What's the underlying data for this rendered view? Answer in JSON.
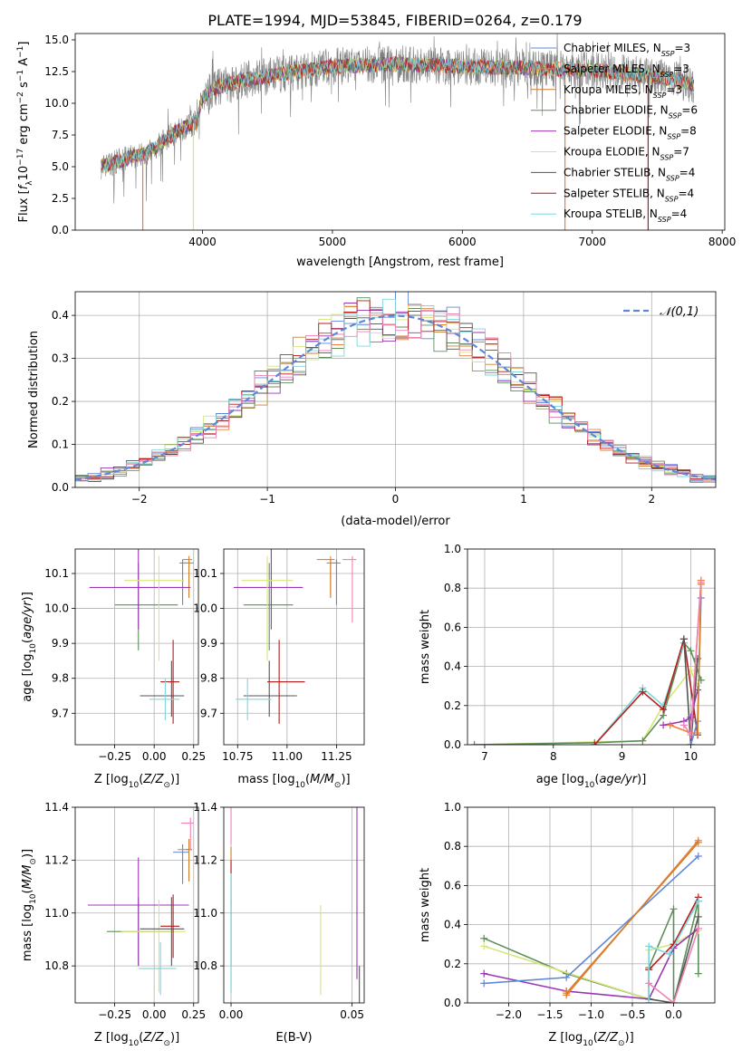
{
  "figure_title": "PLATE=1994, MJD=53845, FIBERID=0264, z=0.179",
  "colors": {
    "Chabrier MILES": "#5f87d7",
    "Salpeter MILES": "#f07e3a",
    "Kroupa MILES": "#d07f2a",
    "Chabrier ELODIE": "#5d8f5a",
    "Salpeter ELODIE": "#9b35b5",
    "Kroupa ELODIE": "#d6e67a",
    "Chabrier STELIB": "#555555",
    "Salpeter STELIB": "#b51c1c",
    "Kroupa STELIB": "#7ed6db",
    "pink": "#ee82b4",
    "gray_data": "#7f7f7f"
  },
  "chart_data": [
    {
      "id": "spectrum",
      "type": "line",
      "title": "PLATE=1994, MJD=53845, FIBERID=0264, z=0.179",
      "xlabel": "wavelength [Angstrom, rest frame]",
      "ylabel": "Flux [f_λ 10^-17 erg cm^-2 s^-1 A^-1]",
      "xlim": [
        3020,
        8020
      ],
      "ylim": [
        0,
        15.5
      ],
      "xticks": [
        4000,
        5000,
        6000,
        7000,
        8000
      ],
      "yticks": [
        0.0,
        2.5,
        5.0,
        7.5,
        10.0,
        12.5,
        15.0
      ],
      "grid": false,
      "legend": "upper right",
      "legend_entries": [
        {
          "label": "Chabrier MILES, N",
          "sub": "SSP",
          "suffix": "=3"
        },
        {
          "label": "Salpeter MILES, N",
          "sub": "SSP",
          "suffix": "=3"
        },
        {
          "label": "Kroupa MILES, N",
          "sub": "SSP",
          "suffix": "=3"
        },
        {
          "label": "Chabrier ELODIE, N",
          "sub": "SSP",
          "suffix": "=6"
        },
        {
          "label": "Salpeter ELODIE, N",
          "sub": "SSP",
          "suffix": "=8"
        },
        {
          "label": "Kroupa ELODIE, N",
          "sub": "SSP",
          "suffix": "=7"
        },
        {
          "label": "Chabrier STELIB, N",
          "sub": "SSP",
          "suffix": "=4"
        },
        {
          "label": "Salpeter STELIB, N",
          "sub": "SSP",
          "suffix": "=4"
        },
        {
          "label": "Kroupa STELIB, N",
          "sub": "SSP",
          "suffix": "=4"
        }
      ],
      "continuum": {
        "x": [
          3220,
          3400,
          3600,
          3800,
          3950,
          4000,
          4100,
          4300,
          4600,
          5000,
          5500,
          6000,
          6500,
          7000,
          7500,
          7780
        ],
        "y": [
          5.0,
          5.6,
          6.2,
          7.8,
          8.5,
          10.5,
          11.2,
          11.8,
          12.3,
          12.9,
          13.1,
          12.9,
          12.8,
          12.6,
          12.1,
          11.5
        ]
      },
      "spikes_to_zero": [
        3540,
        3930,
        6790,
        7430
      ]
    },
    {
      "id": "residuals",
      "type": "histogram",
      "xlabel": "(data-model)/error",
      "ylabel": "Normed distribution",
      "xlim": [
        -2.5,
        2.5
      ],
      "ylim": [
        0,
        0.455
      ],
      "xticks": [
        -2,
        -1,
        0,
        1,
        2
      ],
      "yticks": [
        0.0,
        0.1,
        0.2,
        0.3,
        0.4
      ],
      "grid": true,
      "legend": "upper right",
      "legend_entries": [
        "𝒩(0,1)"
      ],
      "bin_width": 0.1,
      "bins": 50
    },
    {
      "id": "age_vs_Z",
      "type": "errorbar",
      "xlabel": "Z [log10(Z/Z⊙)]",
      "ylabel": "age [log10(age/yr)]",
      "xlim": [
        -0.5,
        0.28
      ],
      "ylim": [
        9.61,
        10.17
      ],
      "xticks": [
        -0.25,
        0.0,
        0.25
      ],
      "yticks": [
        9.7,
        9.8,
        9.9,
        10.0,
        10.1
      ],
      "grid": true,
      "points": [
        {
          "c": "Chabrier MILES",
          "x": 0.18,
          "y": 10.13,
          "xerr": [
            0.02,
            0.03
          ],
          "yerr": [
            0.12,
            0.01
          ]
        },
        {
          "c": "Salpeter MILES",
          "x": 0.22,
          "y": 10.14,
          "xerr": [
            0.04,
            0.02
          ],
          "yerr": [
            0.1,
            0.01
          ]
        },
        {
          "c": "Kroupa MILES",
          "x": 0.22,
          "y": 10.13,
          "xerr": [
            0.03,
            0.03
          ],
          "yerr": [
            0.1,
            0.01
          ]
        },
        {
          "c": "Chabrier ELODIE",
          "x": -0.1,
          "y": 10.01,
          "xerr": [
            0.15,
            0.25
          ],
          "yerr": [
            0.13,
            0.12
          ]
        },
        {
          "c": "Salpeter ELODIE",
          "x": -0.1,
          "y": 10.06,
          "xerr": [
            0.31,
            0.33
          ],
          "yerr": [
            0.12,
            0.12
          ]
        },
        {
          "c": "Kroupa ELODIE",
          "x": 0.03,
          "y": 10.08,
          "xerr": [
            0.22,
            0.16
          ],
          "yerr": [
            0.23,
            0.07
          ]
        },
        {
          "c": "Chabrier STELIB",
          "x": 0.11,
          "y": 9.75,
          "xerr": [
            0.2,
            0.08
          ],
          "yerr": [
            0.06,
            0.1
          ]
        },
        {
          "c": "Salpeter STELIB",
          "x": 0.12,
          "y": 9.79,
          "xerr": [
            0.08,
            0.04
          ],
          "yerr": [
            0.12,
            0.12
          ]
        },
        {
          "c": "Kroupa STELIB",
          "x": 0.07,
          "y": 9.74,
          "xerr": [
            0.1,
            0.09
          ],
          "yerr": [
            0.06,
            0.06
          ]
        }
      ]
    },
    {
      "id": "age_vs_mass",
      "type": "errorbar",
      "xlabel": "mass [log10(M/M⊙)]",
      "ylabel": "",
      "xlim": [
        10.68,
        11.39
      ],
      "ylim": [
        9.61,
        10.17
      ],
      "xticks": [
        10.75,
        11.0,
        11.25
      ],
      "yticks": [
        9.7,
        9.8,
        9.9,
        10.0,
        10.1
      ],
      "grid": true,
      "points": [
        {
          "c": "Chabrier MILES",
          "x": 11.25,
          "y": 10.13,
          "xerr": [
            0.02,
            0.02
          ],
          "yerr": [
            0.12,
            0.01
          ]
        },
        {
          "c": "Salpeter MILES",
          "x": 11.22,
          "y": 10.14,
          "xerr": [
            0.07,
            0.02
          ],
          "yerr": [
            0.1,
            0.01
          ]
        },
        {
          "c": "Kroupa MILES",
          "x": 11.22,
          "y": 10.13,
          "xerr": [
            0.02,
            0.02
          ],
          "yerr": [
            0.1,
            0.01
          ]
        },
        {
          "c": "Chabrier ELODIE",
          "x": 10.91,
          "y": 10.01,
          "xerr": [
            0.13,
            0.12
          ],
          "yerr": [
            0.13,
            0.12
          ]
        },
        {
          "c": "Salpeter ELODIE",
          "x": 10.92,
          "y": 10.06,
          "xerr": [
            0.19,
            0.16
          ],
          "yerr": [
            0.12,
            0.12
          ]
        },
        {
          "c": "Kroupa ELODIE",
          "x": 10.9,
          "y": 10.08,
          "xerr": [
            0.13,
            0.13
          ],
          "yerr": [
            0.23,
            0.07
          ]
        },
        {
          "c": "Chabrier STELIB",
          "x": 10.91,
          "y": 9.75,
          "xerr": [
            0.13,
            0.14
          ],
          "yerr": [
            0.06,
            0.1
          ]
        },
        {
          "c": "Salpeter STELIB",
          "x": 10.96,
          "y": 9.79,
          "xerr": [
            0.06,
            0.13
          ],
          "yerr": [
            0.12,
            0.12
          ]
        },
        {
          "c": "Kroupa STELIB",
          "x": 10.8,
          "y": 9.74,
          "xerr": [
            0.06,
            0.12
          ],
          "yerr": [
            0.06,
            0.06
          ]
        },
        {
          "c": "pink",
          "x": 11.33,
          "y": 10.14,
          "xerr": [
            0.05,
            0.02
          ],
          "yerr": [
            0.18,
            0.01
          ]
        }
      ]
    },
    {
      "id": "weight_vs_age",
      "type": "line",
      "xlabel": "age [log10(age/yr)]",
      "ylabel": "mass weight",
      "xlim": [
        6.75,
        10.35
      ],
      "ylim": [
        0,
        1.0
      ],
      "xticks": [
        7,
        8,
        9,
        10
      ],
      "yticks": [
        0.0,
        0.2,
        0.4,
        0.6,
        0.8,
        1.0
      ],
      "grid": true,
      "series": [
        {
          "c": "Kroupa ELODIE",
          "x": [
            6.85,
            9.3,
            9.6,
            10.0,
            10.1
          ],
          "y": [
            0.0,
            0.02,
            0.2,
            0.38,
            0.3
          ]
        },
        {
          "c": "Chabrier ELODIE",
          "x": [
            6.85,
            8.6,
            9.3,
            9.6,
            9.9,
            10.0,
            10.15
          ],
          "y": [
            0.0,
            0.01,
            0.02,
            0.15,
            0.52,
            0.48,
            0.33
          ]
        },
        {
          "c": "Kroupa STELIB",
          "x": [
            8.6,
            9.3,
            9.6,
            9.9
          ],
          "y": [
            0.0,
            0.29,
            0.2,
            0.52
          ]
        },
        {
          "c": "Salpeter STELIB",
          "x": [
            8.6,
            9.3,
            9.6,
            9.9,
            10.1
          ],
          "y": [
            0.0,
            0.27,
            0.18,
            0.54,
            0.05
          ]
        },
        {
          "c": "Chabrier STELIB",
          "x": [
            9.9,
            10.0,
            10.1
          ],
          "y": [
            0.54,
            0.0,
            0.44
          ]
        },
        {
          "c": "Salpeter ELODIE",
          "x": [
            9.6,
            9.9,
            10.0,
            10.1
          ],
          "y": [
            0.1,
            0.12,
            0.14,
            0.28
          ]
        },
        {
          "c": "Chabrier MILES",
          "x": [
            10.0,
            10.1,
            10.15
          ],
          "y": [
            0.0,
            0.12,
            0.75
          ]
        },
        {
          "c": "Salpeter MILES",
          "x": [
            9.7,
            10.0,
            10.15
          ],
          "y": [
            0.1,
            0.06,
            0.84
          ]
        },
        {
          "c": "Kroupa MILES",
          "x": [
            10.1,
            10.15
          ],
          "y": [
            0.06,
            0.82
          ]
        },
        {
          "c": "pink",
          "x": [
            9.9,
            10.0,
            10.15
          ],
          "y": [
            0.1,
            0.05,
            0.83
          ]
        }
      ]
    },
    {
      "id": "mass_vs_Z",
      "type": "errorbar",
      "xlabel": "Z [log10(Z/Z⊙)]",
      "ylabel": "mass [log10(M/M⊙)]",
      "xlim": [
        -0.5,
        0.28
      ],
      "ylim": [
        10.66,
        11.4
      ],
      "xticks": [
        -0.25,
        0.0,
        0.25
      ],
      "yticks": [
        10.8,
        11.0,
        11.2,
        11.4
      ],
      "grid": true,
      "points": [
        {
          "c": "Chabrier MILES",
          "x": 0.18,
          "y": 11.23,
          "xerr": [
            0.06,
            0.04
          ],
          "yerr": [
            0.12,
            0.03
          ]
        },
        {
          "c": "Salpeter MILES",
          "x": 0.22,
          "y": 11.24,
          "xerr": [
            0.07,
            0.02
          ],
          "yerr": [
            0.12,
            0.04
          ]
        },
        {
          "c": "Kroupa MILES",
          "x": 0.22,
          "y": 11.24,
          "xerr": [
            0.02,
            0.02
          ],
          "yerr": [
            0.12,
            0.04
          ]
        },
        {
          "c": "Chabrier ELODIE",
          "x": -0.1,
          "y": 10.93,
          "xerr": [
            0.2,
            0.2
          ],
          "yerr": [
            0.13,
            0.13
          ]
        },
        {
          "c": "Salpeter ELODIE",
          "x": -0.1,
          "y": 11.03,
          "xerr": [
            0.32,
            0.32
          ],
          "yerr": [
            0.23,
            0.18
          ]
        },
        {
          "c": "Kroupa ELODIE",
          "x": 0.03,
          "y": 10.93,
          "xerr": [
            0.24,
            0.17
          ],
          "yerr": [
            0.23,
            0.12
          ]
        },
        {
          "c": "Chabrier STELIB",
          "x": 0.11,
          "y": 10.94,
          "xerr": [
            0.2,
            0.08
          ],
          "yerr": [
            0.14,
            0.12
          ]
        },
        {
          "c": "Salpeter STELIB",
          "x": 0.12,
          "y": 10.95,
          "xerr": [
            0.08,
            0.04
          ],
          "yerr": [
            0.12,
            0.12
          ]
        },
        {
          "c": "Kroupa STELIB",
          "x": 0.04,
          "y": 10.79,
          "xerr": [
            0.14,
            0.1
          ],
          "yerr": [
            0.1,
            0.1
          ]
        },
        {
          "c": "pink",
          "x": 0.23,
          "y": 11.34,
          "xerr": [
            0.06,
            0.02
          ],
          "yerr": [
            0.1,
            0.02
          ]
        }
      ]
    },
    {
      "id": "mass_vs_ebv",
      "type": "errorbar",
      "xlabel": "E(B-V)",
      "ylabel": "",
      "xlim": [
        -0.003,
        0.055
      ],
      "ylim": [
        10.66,
        11.4
      ],
      "xticks": [
        0.0,
        0.05
      ],
      "yticks": [
        10.8,
        11.0,
        11.2,
        11.4
      ],
      "grid": true,
      "points": [
        {
          "c": "pink",
          "x": 0.0,
          "y": 11.34,
          "xerr": [
            0,
            0
          ],
          "yerr": [
            0.08,
            0.06
          ]
        },
        {
          "c": "Kroupa MILES",
          "x": 0.0,
          "y": 11.15,
          "xerr": [
            0,
            0
          ],
          "yerr": [
            0.12,
            0.1
          ]
        },
        {
          "c": "Salpeter STELIB",
          "x": 0.0,
          "y": 11.0,
          "xerr": [
            0,
            0
          ],
          "yerr": [
            0.2,
            0.2
          ]
        },
        {
          "c": "Chabrier ELODIE",
          "x": 0.0,
          "y": 10.95,
          "xerr": [
            0,
            0
          ],
          "yerr": [
            0.25,
            0.1
          ]
        },
        {
          "c": "Kroupa STELIB",
          "x": 0.0,
          "y": 10.85,
          "xerr": [
            0,
            0
          ],
          "yerr": [
            0.15,
            0.3
          ]
        },
        {
          "c": "Kroupa ELODIE",
          "x": 0.037,
          "y": 10.86,
          "xerr": [
            0,
            0
          ],
          "yerr": [
            0.17,
            0.17
          ]
        },
        {
          "c": "Salpeter ELODIE",
          "x": 0.052,
          "y": 11.05,
          "xerr": [
            0,
            0
          ],
          "yerr": [
            0.3,
            0.35
          ]
        },
        {
          "c": "Chabrier STELIB",
          "x": 0.053,
          "y": 10.75,
          "xerr": [
            0,
            0
          ],
          "yerr": [
            0.1,
            0.05
          ]
        }
      ]
    },
    {
      "id": "weight_vs_Z",
      "type": "line",
      "xlabel": "Z [log10(Z/Z⊙)]",
      "ylabel": "mass weight",
      "xlim": [
        -2.5,
        0.5
      ],
      "ylim": [
        0,
        1.0
      ],
      "xticks": [
        -2.0,
        -1.5,
        -1.0,
        -0.5,
        0.0
      ],
      "yticks": [
        0.0,
        0.2,
        0.4,
        0.6,
        0.8,
        1.0
      ],
      "grid": true,
      "series": [
        {
          "c": "Chabrier ELODIE",
          "x": [
            -2.3,
            -1.3,
            -0.3,
            -0.3,
            0.0,
            0.0,
            0.3,
            0.3
          ],
          "y": [
            0.33,
            0.15,
            0.02,
            0.18,
            0.48,
            0.0,
            0.52,
            0.15
          ]
        },
        {
          "c": "Kroupa ELODIE",
          "x": [
            -2.3,
            -0.3,
            -0.3,
            0.0,
            0.3
          ],
          "y": [
            0.29,
            0.02,
            0.27,
            0.3,
            0.37
          ]
        },
        {
          "c": "Salpeter ELODIE",
          "x": [
            -2.3,
            -1.3,
            -0.3,
            0.0,
            0.3
          ],
          "y": [
            0.15,
            0.06,
            0.02,
            0.28,
            0.38
          ]
        },
        {
          "c": "Chabrier MILES",
          "x": [
            -2.3,
            -1.3,
            0.3
          ],
          "y": [
            0.1,
            0.13,
            0.75
          ]
        },
        {
          "c": "Salpeter MILES",
          "x": [
            -1.3,
            -1.3,
            0.3
          ],
          "y": [
            0.06,
            0.04,
            0.83
          ]
        },
        {
          "c": "Kroupa MILES",
          "x": [
            -1.3,
            0.3
          ],
          "y": [
            0.05,
            0.82
          ]
        },
        {
          "c": "Salpeter STELIB",
          "x": [
            -0.3,
            -0.3,
            0.0,
            0.3
          ],
          "y": [
            0.0,
            0.17,
            0.3,
            0.54
          ]
        },
        {
          "c": "Chabrier STELIB",
          "x": [
            -0.3,
            0.0,
            0.3
          ],
          "y": [
            0.02,
            0.0,
            0.44
          ]
        },
        {
          "c": "Kroupa STELIB",
          "x": [
            -0.3,
            -0.3,
            -0.05,
            0.3
          ],
          "y": [
            0.0,
            0.29,
            0.25,
            0.52
          ]
        },
        {
          "c": "pink",
          "x": [
            -0.3,
            0.0,
            0.3
          ],
          "y": [
            0.1,
            0.0,
            0.38
          ]
        }
      ]
    }
  ]
}
